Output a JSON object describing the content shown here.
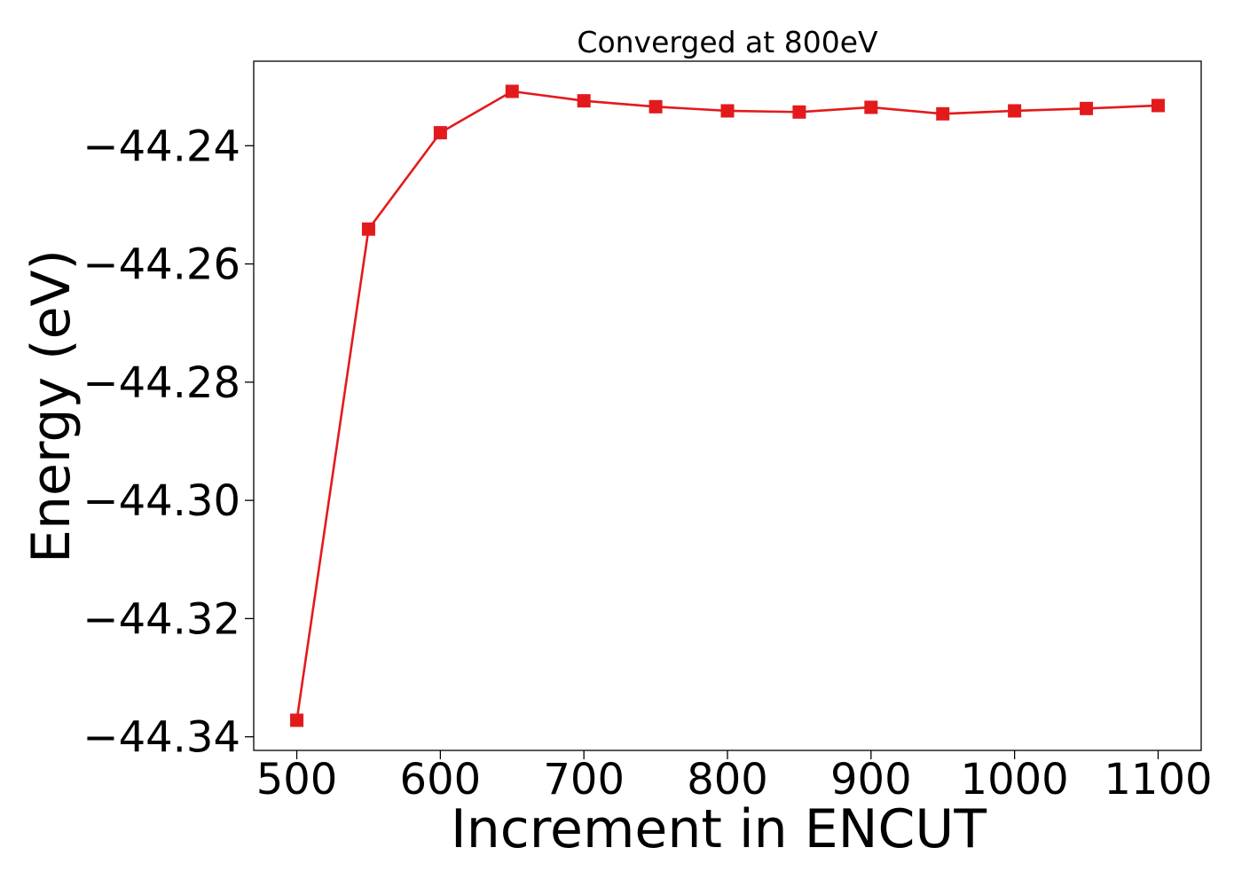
{
  "chart_data": {
    "type": "line",
    "title": "Converged at 800eV",
    "xlabel": "Increment in ENCUT",
    "ylabel": "Energy (eV)",
    "x": [
      500,
      550,
      600,
      650,
      700,
      750,
      800,
      850,
      900,
      950,
      1000,
      1050,
      1100
    ],
    "series": [
      {
        "values": [
          -44.3372,
          -44.2541,
          -44.2378,
          -44.2308,
          -44.2324,
          -44.2334,
          -44.2341,
          -44.2343,
          -44.2335,
          -44.2346,
          -44.2341,
          -44.2337,
          -44.2332
        ],
        "color": "#e31a1c",
        "marker": "square"
      }
    ],
    "xticks": [
      "500",
      "600",
      "700",
      "800",
      "900",
      "1000",
      "1100"
    ],
    "xtick_values": [
      500,
      600,
      700,
      800,
      900,
      1000,
      1100
    ],
    "yticks": [
      "−44.34",
      "−44.32",
      "−44.30",
      "−44.28",
      "−44.26",
      "−44.24"
    ],
    "ytick_values": [
      -44.34,
      -44.32,
      -44.3,
      -44.28,
      -44.26,
      -44.24
    ],
    "xlim": [
      470,
      1130
    ],
    "ylim": [
      -44.3423,
      -44.2257
    ],
    "grid": false,
    "legend": "none"
  }
}
